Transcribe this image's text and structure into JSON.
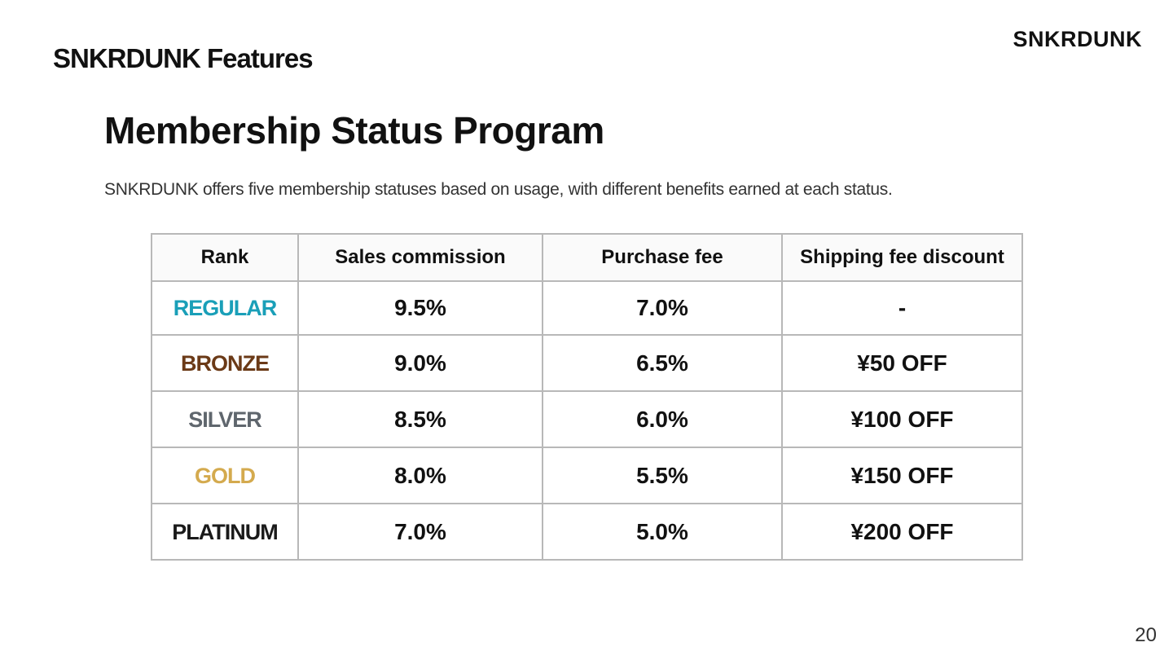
{
  "header": {
    "section_title": "SNKRDUNK Features",
    "brand_logo": "SNKRDUNK"
  },
  "main": {
    "heading": "Membership Status Program",
    "description": "SNKRDUNK offers five membership statuses based on usage, with different benefits earned at each status."
  },
  "table": {
    "headers": {
      "rank": "Rank",
      "sales_commission": "Sales commission",
      "purchase_fee": "Purchase fee",
      "shipping_discount": "Shipping fee discount"
    },
    "rows": [
      {
        "rank": "REGULAR",
        "rank_color": "#1a9fb8",
        "sales_commission": "9.5%",
        "purchase_fee": "7.0%",
        "shipping_discount": "-"
      },
      {
        "rank": "BRONZE",
        "rank_color": "#6b3a17",
        "sales_commission": "9.0%",
        "purchase_fee": "6.5%",
        "shipping_discount": "¥50 OFF"
      },
      {
        "rank": "SILVER",
        "rank_color": "#5f666d",
        "sales_commission": "8.5%",
        "purchase_fee": "6.0%",
        "shipping_discount": "¥100 OFF"
      },
      {
        "rank": "GOLD",
        "rank_color": "#d4aa4e",
        "sales_commission": "8.0%",
        "purchase_fee": "5.5%",
        "shipping_discount": "¥150 OFF"
      },
      {
        "rank": "PLATINUM",
        "rank_color": "#1a1a1a",
        "sales_commission": "7.0%",
        "purchase_fee": "5.0%",
        "shipping_discount": "¥200 OFF"
      }
    ]
  },
  "footer": {
    "page_number": "20"
  }
}
